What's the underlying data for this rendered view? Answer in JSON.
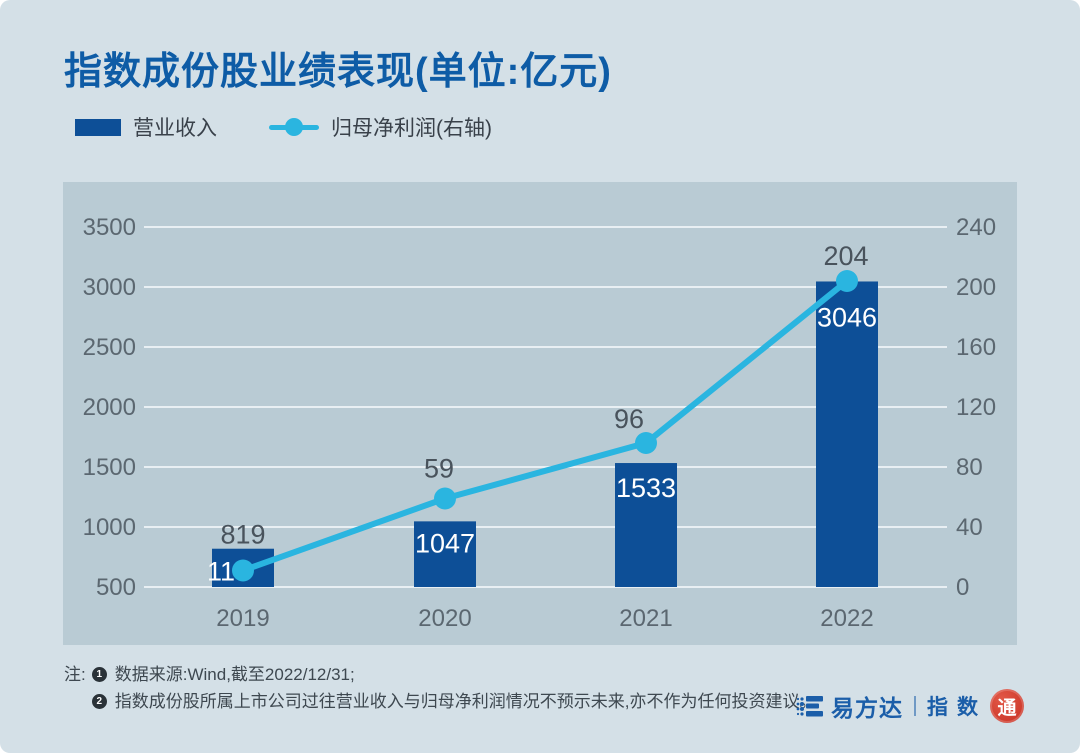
{
  "title": "指数成份股业绩表现(单位:亿元)",
  "legend": [
    {
      "label": "营业收入",
      "type": "bar",
      "color": "#0d4f97"
    },
    {
      "label": "归母净利润(右轴)",
      "type": "line",
      "color": "#2ab5e0"
    }
  ],
  "chart_data": {
    "type": "bar",
    "categories": [
      "2019",
      "2020",
      "2021",
      "2022"
    ],
    "series": [
      {
        "name": "营业收入",
        "type": "bar",
        "axis": "left",
        "values": [
          819,
          1047,
          1533,
          3046
        ]
      },
      {
        "name": "归母净利润(右轴)",
        "type": "line",
        "axis": "right",
        "values": [
          11,
          59,
          96,
          204
        ]
      }
    ],
    "title": "指数成份股业绩表现(单位:亿元)",
    "xlabel": "",
    "ylabel": "",
    "left_axis": {
      "min": 500,
      "max": 3500,
      "step": 500,
      "ticks": [
        3500,
        3000,
        2500,
        2000,
        1500,
        1000,
        500
      ]
    },
    "right_axis": {
      "min": 0,
      "max": 240,
      "step": 40,
      "ticks": [
        240,
        200,
        160,
        120,
        80,
        40,
        0
      ]
    },
    "grid": true,
    "legend_position": "top-left"
  },
  "footnote": {
    "prefix": "注:",
    "items": [
      {
        "marker": "1",
        "text": "数据来源:Wind,截至2022/12/31;"
      },
      {
        "marker": "2",
        "text": "指数成份股所属上市公司过往营业收入与归母净利润情况不预示未来,亦不作为任何投资建议。"
      }
    ]
  },
  "logo": {
    "brand": "易方达",
    "suffix": "指数",
    "seal": "通"
  },
  "colors": {
    "page_background": "#d4e0e7",
    "panel_background": "#b9cbd4",
    "bar": "#0d4f97",
    "line": "#2ab5e0",
    "title": "#0e5ca6",
    "gridline": "#e8eff3",
    "axis_text": "#5b6770",
    "value_label_gray": "#49535c",
    "value_label_white": "#ffffff",
    "footnote_text": "#3e4850",
    "logo_blue": "#1b5ea9",
    "seal_red": "#c72f22"
  }
}
